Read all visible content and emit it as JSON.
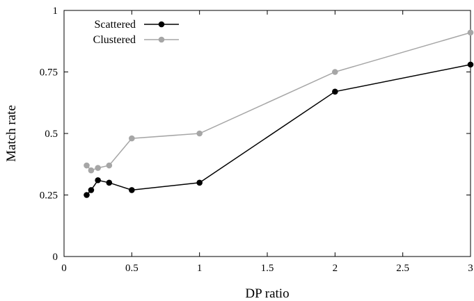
{
  "chart_data": {
    "type": "line",
    "xlabel": "DP ratio",
    "ylabel": "Match rate",
    "xlim": [
      0,
      3
    ],
    "ylim": [
      0,
      1
    ],
    "x_ticks": [
      "0",
      "0.5",
      "1",
      "1.5",
      "2",
      "2.5",
      "3"
    ],
    "y_ticks": [
      "0",
      "0.25",
      "0.5",
      "0.75",
      "1"
    ],
    "grid": false,
    "legend_position": "top-left",
    "series": [
      {
        "name": "Scattered",
        "color": "#000000",
        "x": [
          0.167,
          0.2,
          0.25,
          0.333,
          0.5,
          1,
          2,
          3
        ],
        "y": [
          0.25,
          0.27,
          0.31,
          0.3,
          0.27,
          0.3,
          0.67,
          0.78
        ]
      },
      {
        "name": "Clustered",
        "color": "#a6a6a6",
        "x": [
          0.167,
          0.2,
          0.25,
          0.333,
          0.5,
          1,
          2,
          3
        ],
        "y": [
          0.37,
          0.35,
          0.36,
          0.37,
          0.48,
          0.5,
          0.75,
          0.91
        ]
      }
    ]
  }
}
